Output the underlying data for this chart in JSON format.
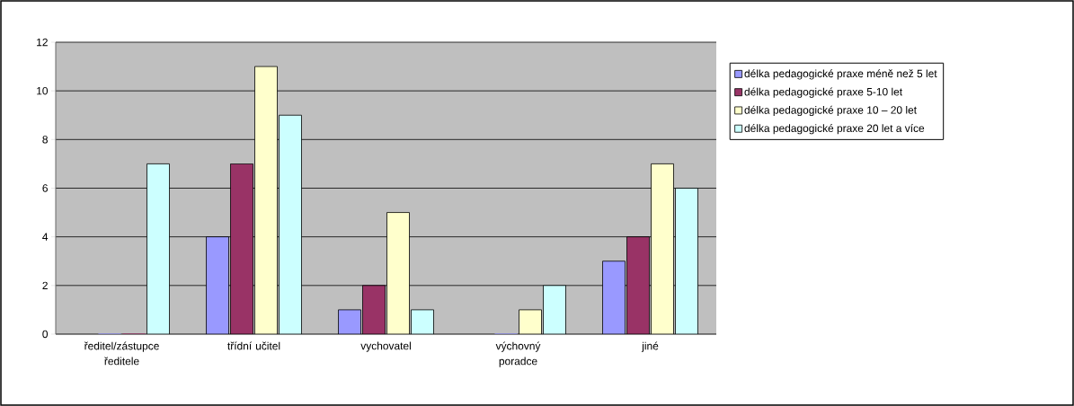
{
  "chart_data": {
    "type": "bar",
    "categories": [
      "ředitel/zástupce ředitele",
      "třídní učitel",
      "vychovatel",
      "výchovný poradce",
      "jiné"
    ],
    "series": [
      {
        "name": "délka pedagogické praxe méně než 5 let",
        "color": "#9999ff",
        "values": [
          0,
          4,
          1,
          0,
          3
        ]
      },
      {
        "name": "délka pedagogické praxe 5-10 let",
        "color": "#993366",
        "values": [
          0,
          7,
          2,
          0,
          4
        ]
      },
      {
        "name": "délka pedagogické praxe 10 – 20 let",
        "color": "#ffffcc",
        "values": [
          0,
          11,
          5,
          1,
          7
        ]
      },
      {
        "name": "délka pedagogické praxe 20 let a více",
        "color": "#ccffff",
        "values": [
          7,
          9,
          1,
          2,
          6
        ]
      }
    ],
    "ylim": [
      0,
      12
    ],
    "yticks": [
      0,
      2,
      4,
      6,
      8,
      10,
      12
    ],
    "grid": "y",
    "legend": "right"
  }
}
